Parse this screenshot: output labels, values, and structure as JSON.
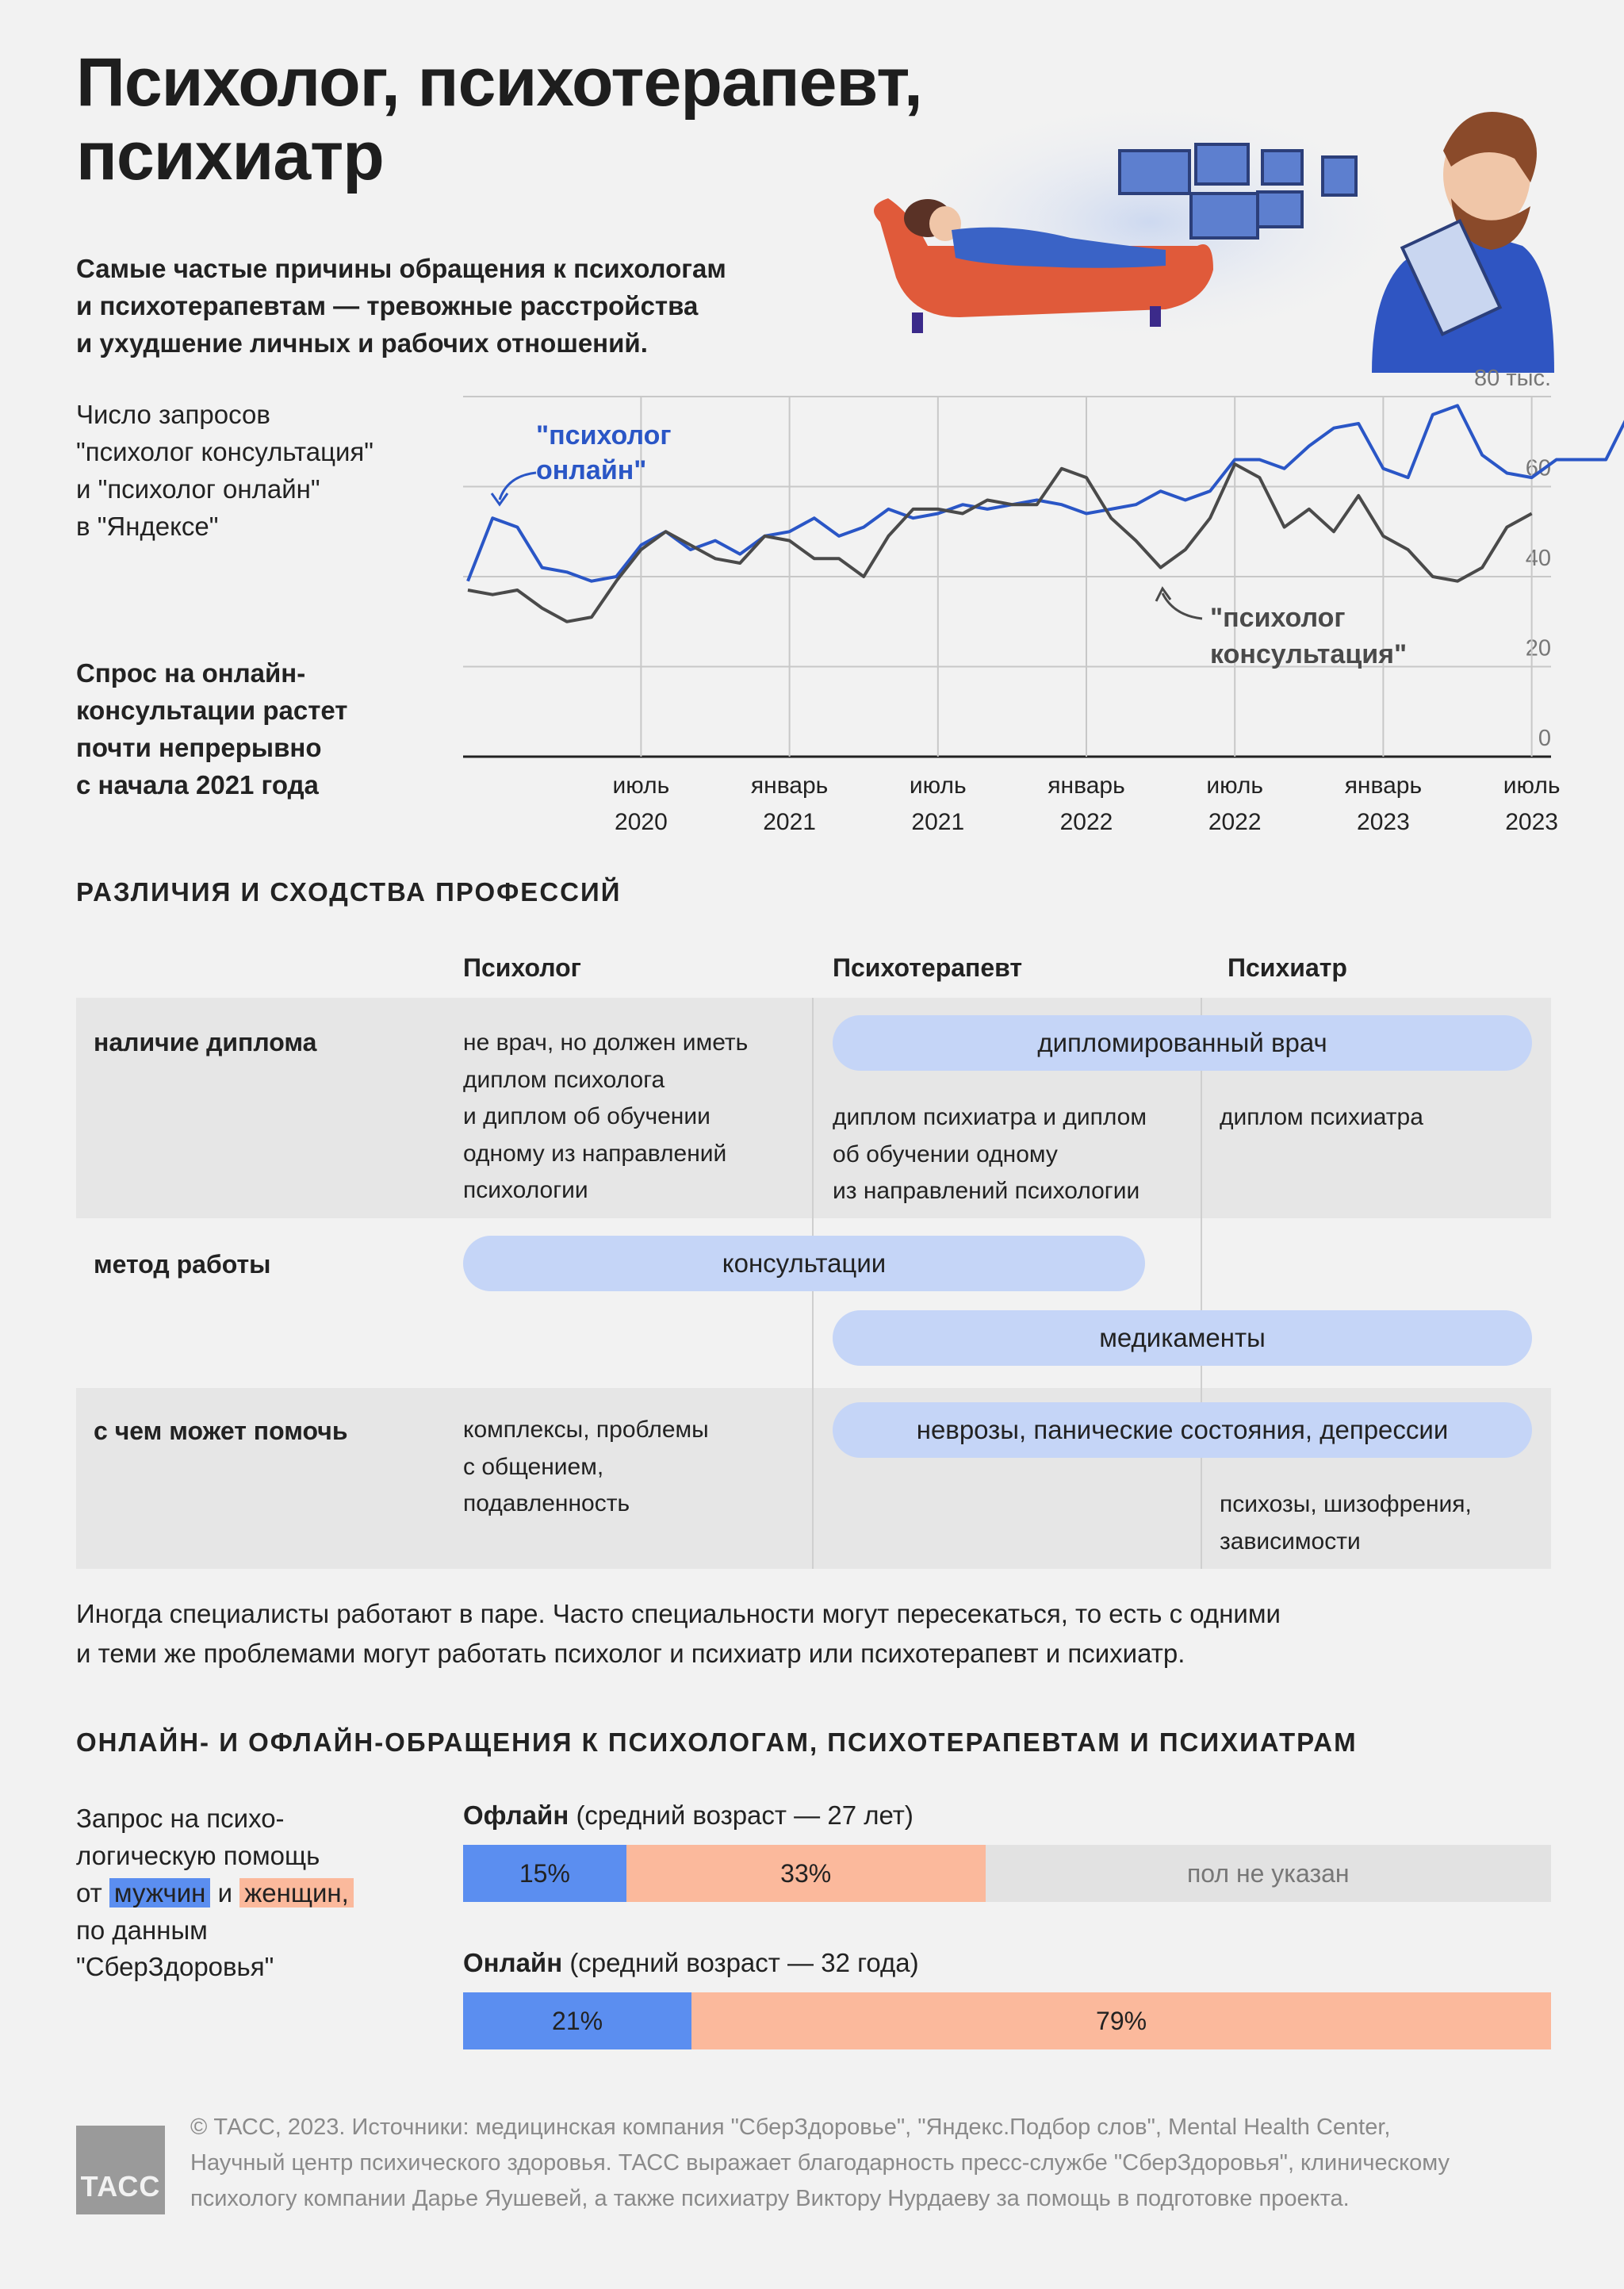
{
  "header": {
    "title_line1": "Психолог, психотерапевт,",
    "title_line2": "психиатр",
    "lead_line1": "Самые частые причины обращения к психологам",
    "lead_line2": "и психотерапевтам — тревожные расстройства",
    "lead_line3": "и ухудшение личных и рабочих отношений."
  },
  "chart_side": {
    "desc_line1": "Число запросов",
    "desc_line2": "\"психолог консультация\"",
    "desc_line3": "и \"психолог онлайн\"",
    "desc_line4": "в \"Яндексе\"",
    "note_line1": "Спрос на онлайн-",
    "note_line2": "консультации растет",
    "note_line3": "почти непрерывно",
    "note_line4": "с начала 2021 года"
  },
  "chart_data": {
    "type": "line",
    "x_start": "2019-12",
    "x_step": "month",
    "ylim": [
      0,
      80
    ],
    "y_ticks": [
      "0",
      "20",
      "40",
      "60",
      "80 тыс."
    ],
    "x_ticks": [
      {
        "m1": "июль",
        "m2": "2020"
      },
      {
        "m1": "январь",
        "m2": "2021"
      },
      {
        "m1": "июль",
        "m2": "2021"
      },
      {
        "m1": "январь",
        "m2": "2022"
      },
      {
        "m1": "июль",
        "m2": "2022"
      },
      {
        "m1": "январь",
        "m2": "2023"
      },
      {
        "m1": "июль",
        "m2": "2023"
      }
    ],
    "grid": true,
    "series": [
      {
        "name": "\"психолог онлайн\"",
        "label_line1": "\"психолог",
        "label_line2": "онлайн\"",
        "color": "#2a56c6",
        "values": [
          39,
          53,
          51,
          42,
          41,
          39,
          40,
          47,
          50,
          46,
          48,
          45,
          49,
          50,
          53,
          49,
          51,
          55,
          53,
          54,
          56,
          55,
          56,
          57,
          56,
          54,
          55,
          56,
          59,
          57,
          59,
          66,
          66,
          64,
          69,
          73,
          74,
          64,
          62,
          76,
          78,
          67,
          63,
          62,
          66,
          66,
          66,
          77
        ]
      },
      {
        "name": "\"психолог консультация\"",
        "label_line1": "\"психолог",
        "label_line2": "консультация\"",
        "color": "#4a4a4a",
        "values": [
          37,
          36,
          37,
          33,
          30,
          31,
          39,
          46,
          50,
          47,
          44,
          43,
          49,
          48,
          44,
          44,
          40,
          49,
          55,
          55,
          54,
          57,
          56,
          56,
          64,
          62,
          53,
          48,
          42,
          46,
          53,
          65,
          62,
          51,
          55,
          50,
          58,
          49,
          46,
          40,
          39,
          42,
          51,
          54
        ]
      }
    ]
  },
  "compare": {
    "section_title": "РАЗЛИЧИЯ И СХОДСТВА ПРОФЕССИЙ",
    "col1": "Психолог",
    "col2": "Психотерапевт",
    "col3": "Психиатр",
    "row1_label": "наличие диплома",
    "row1_psychologist": [
      "не врач, но должен иметь",
      "диплом психолога",
      "и диплом об обучении",
      "одному из направлений",
      "психологии"
    ],
    "row1_pill": "дипломированный врач",
    "row1_therapist": [
      "диплом психиатра и диплом",
      "об обучении одному",
      "из направлений психологии"
    ],
    "row1_psychiatrist": "диплом психиатра",
    "row2_label": "метод работы",
    "row2_pill1": "консультации",
    "row2_pill2": "медикаменты",
    "row3_label": "с чем может помочь",
    "row3_psychologist": [
      "комплексы, проблемы",
      "с общением,",
      "подавленность"
    ],
    "row3_pill": "неврозы, панические состояния, депрессии",
    "row3_psychiatrist": [
      "психозы, шизофрения,",
      "зависимости"
    ],
    "note_line1": "Иногда специалисты работают в паре. Часто специальности могут пересекаться, то есть с одними",
    "note_line2": "и теми же проблемами могут работать психолог и психиатр или психотерапевт и психиатр."
  },
  "bars": {
    "section_title": "ОНЛАЙН- И ОФЛАЙН-ОБРАЩЕНИЯ К ПСИХОЛОГАМ, ПСИХОТЕРАПЕВТАМ И ПСИХИАТРАМ",
    "side_line1": "Запрос на психо-",
    "side_line2": "логическую помощь",
    "side_from": "от",
    "side_men": "мужчин",
    "side_and": "и",
    "side_women": "женщин,",
    "side_line4": "по данным",
    "side_line5": "\"СберЗдоровья\"",
    "colors": {
      "men": "#5b8ef0",
      "women": "#fbb99c",
      "unknown": "#e2e2e2"
    },
    "offline": {
      "label": "Офлайн",
      "sub": "(средний возраст — 27 лет)",
      "men": 15,
      "women": 33,
      "men_label": "15%",
      "women_label": "33%",
      "unknown_label": "пол не указан"
    },
    "online": {
      "label": "Онлайн",
      "sub": "(средний возраст — 32 года)",
      "men": 21,
      "women": 79,
      "men_label": "21%",
      "women_label": "79%"
    }
  },
  "footer": {
    "line1": "© ТАСС, 2023. Источники: медицинская компания \"СберЗдоровье\", \"Яндекс.Подбор слов\", Mental Health Center,",
    "line2": "Научный центр психического здоровья. ТАСС выражает благодарность пресс-службе \"СберЗдоровья\", клиническому",
    "line3": "психологу компании Дарье Яушевей, а также психиатру Виктору Нурдаеву за помощь в подготовке проекта.",
    "logo": "ТАСС"
  }
}
